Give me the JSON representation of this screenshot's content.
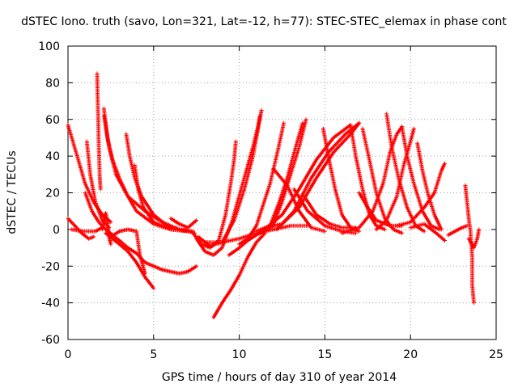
{
  "chart_data": {
    "type": "scatter",
    "title": "dSTEC Iono. truth (savo, Lon=321, Lat=-12, h=77): STEC-STEC_elemax in phase cont",
    "xlabel": "GPS time / hours of day 310 of year 2014",
    "ylabel": "dSTEC  / TECUs",
    "xlim": [
      0,
      25
    ],
    "ylim": [
      -60,
      100
    ],
    "xticks": [
      "0",
      "5",
      "10",
      "15",
      "20",
      "25"
    ],
    "yticks": [
      "-60",
      "-40",
      "-20",
      "0",
      "20",
      "40",
      "60",
      "80",
      "100"
    ],
    "grid": true,
    "marker": "+",
    "series_color": "#ff0000",
    "arcs": [
      [
        [
          0.0,
          57
        ],
        [
          0.6,
          38
        ],
        [
          1.0,
          25
        ],
        [
          1.5,
          15
        ],
        [
          2.0,
          8
        ],
        [
          2.5,
          4
        ]
      ],
      [
        [
          0.0,
          6
        ],
        [
          0.4,
          2
        ],
        [
          0.8,
          -2
        ],
        [
          1.2,
          -5
        ],
        [
          1.5,
          -4
        ]
      ],
      [
        [
          0.2,
          0
        ],
        [
          0.9,
          -1
        ],
        [
          1.6,
          -1
        ],
        [
          2.0,
          1
        ]
      ],
      [
        [
          1.0,
          20
        ],
        [
          1.4,
          10
        ],
        [
          1.8,
          4
        ],
        [
          2.2,
          0
        ],
        [
          2.6,
          -3
        ]
      ],
      [
        [
          1.1,
          48
        ],
        [
          1.3,
          30
        ],
        [
          1.6,
          15
        ],
        [
          2.0,
          5
        ],
        [
          2.4,
          1
        ]
      ],
      [
        [
          1.7,
          85
        ],
        [
          1.75,
          65
        ],
        [
          1.8,
          45
        ],
        [
          1.85,
          30
        ],
        [
          1.9,
          22
        ]
      ],
      [
        [
          2.0,
          0
        ],
        [
          2.1,
          5
        ],
        [
          2.2,
          9
        ],
        [
          2.3,
          4
        ],
        [
          2.4,
          -4
        ],
        [
          2.5,
          -8
        ]
      ],
      [
        [
          2.1,
          66
        ],
        [
          2.3,
          50
        ],
        [
          2.6,
          38
        ],
        [
          3.0,
          28
        ],
        [
          3.5,
          18
        ],
        [
          4.0,
          10
        ],
        [
          5.0,
          3
        ],
        [
          6.0,
          0
        ],
        [
          7.0,
          -1
        ],
        [
          7.4,
          -2
        ]
      ],
      [
        [
          2.1,
          62
        ],
        [
          2.4,
          45
        ],
        [
          2.8,
          30
        ],
        [
          3.5,
          18
        ],
        [
          4.5,
          10
        ],
        [
          5.5,
          4
        ],
        [
          6.5,
          0
        ],
        [
          7.3,
          -1
        ]
      ],
      [
        [
          3.4,
          52
        ],
        [
          3.6,
          40
        ],
        [
          3.9,
          28
        ],
        [
          4.3,
          18
        ],
        [
          5.0,
          8
        ],
        [
          5.8,
          2
        ],
        [
          6.5,
          0
        ],
        [
          7.0,
          -1
        ]
      ],
      [
        [
          3.9,
          35
        ],
        [
          4.1,
          22
        ],
        [
          4.4,
          12
        ],
        [
          5.0,
          4
        ],
        [
          6.0,
          0
        ],
        [
          7.0,
          -1
        ]
      ],
      [
        [
          2.2,
          -2
        ],
        [
          2.6,
          -5
        ],
        [
          3.0,
          -8
        ],
        [
          3.5,
          -12
        ],
        [
          4.0,
          -18
        ],
        [
          4.5,
          -26
        ],
        [
          5.0,
          -32
        ]
      ],
      [
        [
          2.3,
          -1
        ],
        [
          3.0,
          -6
        ],
        [
          3.5,
          -10
        ],
        [
          4.0,
          -13
        ],
        [
          4.5,
          -18
        ],
        [
          5.0,
          -20
        ],
        [
          5.5,
          -22
        ],
        [
          6.0,
          -23
        ],
        [
          6.5,
          -24
        ],
        [
          7.0,
          -23
        ],
        [
          7.5,
          -20
        ]
      ],
      [
        [
          2.5,
          -4
        ],
        [
          3.0,
          -1
        ],
        [
          3.5,
          0
        ],
        [
          4.0,
          -1
        ],
        [
          4.2,
          -14
        ],
        [
          4.5,
          -24
        ]
      ],
      [
        [
          6.0,
          6
        ],
        [
          6.5,
          3
        ],
        [
          7.0,
          1
        ],
        [
          7.5,
          5
        ]
      ],
      [
        [
          7.5,
          -5
        ],
        [
          8.0,
          -12
        ],
        [
          8.5,
          -14
        ],
        [
          9.0,
          -10
        ],
        [
          9.6,
          5
        ],
        [
          10.2,
          25
        ],
        [
          10.8,
          45
        ],
        [
          11.2,
          60
        ],
        [
          11.3,
          65
        ]
      ],
      [
        [
          8.5,
          -48
        ],
        [
          9.0,
          -40
        ],
        [
          9.5,
          -33
        ],
        [
          10.0,
          -25
        ],
        [
          10.5,
          -15
        ],
        [
          11.0,
          -7
        ],
        [
          11.5,
          -2
        ]
      ],
      [
        [
          9.4,
          -14
        ],
        [
          10.0,
          -10
        ],
        [
          10.5,
          -6
        ],
        [
          11.0,
          -3
        ],
        [
          12.0,
          2
        ],
        [
          12.5,
          3
        ]
      ],
      [
        [
          7.3,
          -2
        ],
        [
          7.8,
          -8
        ],
        [
          8.3,
          -10
        ],
        [
          8.8,
          -6
        ],
        [
          9.2,
          8
        ],
        [
          9.5,
          25
        ],
        [
          9.7,
          38
        ],
        [
          9.8,
          48
        ]
      ],
      [
        [
          7.6,
          -4
        ],
        [
          8.3,
          -9
        ],
        [
          9.0,
          -7
        ],
        [
          9.7,
          5
        ],
        [
          10.3,
          22
        ],
        [
          10.8,
          40
        ],
        [
          11.1,
          55
        ],
        [
          11.2,
          62
        ]
      ],
      [
        [
          10.0,
          -8
        ],
        [
          10.5,
          -5
        ],
        [
          11.0,
          2
        ],
        [
          11.8,
          25
        ],
        [
          12.3,
          45
        ],
        [
          12.6,
          58
        ]
      ],
      [
        [
          8.0,
          -7
        ],
        [
          9.0,
          -7
        ],
        [
          10.0,
          -5
        ],
        [
          11.0,
          -2
        ],
        [
          12.0,
          0
        ],
        [
          13.0,
          2
        ],
        [
          14.0,
          2
        ]
      ],
      [
        [
          11.0,
          -1
        ],
        [
          12.0,
          3
        ],
        [
          12.5,
          15
        ],
        [
          13.0,
          30
        ],
        [
          13.5,
          45
        ],
        [
          13.9,
          60
        ]
      ],
      [
        [
          11.2,
          -2
        ],
        [
          11.8,
          2
        ],
        [
          12.3,
          14
        ],
        [
          12.8,
          28
        ],
        [
          13.3,
          45
        ],
        [
          13.7,
          58
        ]
      ],
      [
        [
          12.0,
          33
        ],
        [
          12.8,
          24
        ],
        [
          13.5,
          10
        ],
        [
          14.2,
          1
        ],
        [
          15.0,
          -1
        ]
      ],
      [
        [
          11.5,
          0
        ],
        [
          12.5,
          8
        ],
        [
          13.5,
          22
        ],
        [
          14.5,
          38
        ],
        [
          15.5,
          50
        ],
        [
          16.5,
          57
        ]
      ],
      [
        [
          12.2,
          0
        ],
        [
          13.2,
          10
        ],
        [
          14.2,
          28
        ],
        [
          15.2,
          42
        ],
        [
          16.2,
          52
        ],
        [
          17.0,
          58
        ]
      ],
      [
        [
          12.5,
          3
        ],
        [
          13.5,
          12
        ],
        [
          14.5,
          28
        ],
        [
          15.5,
          42
        ],
        [
          16.5,
          52
        ],
        [
          17.0,
          58
        ]
      ],
      [
        [
          14.9,
          55
        ],
        [
          15.2,
          40
        ],
        [
          15.6,
          22
        ],
        [
          16.0,
          8
        ],
        [
          16.5,
          1
        ],
        [
          17.0,
          -1
        ]
      ],
      [
        [
          13.8,
          18
        ],
        [
          14.5,
          8
        ],
        [
          15.3,
          3
        ],
        [
          16.0,
          1
        ],
        [
          16.8,
          1
        ]
      ],
      [
        [
          13.2,
          22
        ],
        [
          14.0,
          10
        ],
        [
          15.0,
          2
        ],
        [
          16.0,
          -1
        ],
        [
          16.8,
          -2
        ]
      ],
      [
        [
          16.5,
          57
        ],
        [
          16.8,
          40
        ],
        [
          17.2,
          22
        ],
        [
          17.6,
          8
        ],
        [
          18.0,
          2
        ],
        [
          18.5,
          0
        ]
      ],
      [
        [
          17.0,
          20
        ],
        [
          17.5,
          12
        ],
        [
          18.0,
          5
        ],
        [
          18.8,
          2
        ],
        [
          19.5,
          2
        ]
      ],
      [
        [
          16.0,
          -2
        ],
        [
          17.0,
          1
        ],
        [
          17.8,
          10
        ],
        [
          18.4,
          25
        ],
        [
          18.8,
          42
        ],
        [
          19.2,
          52
        ],
        [
          19.5,
          56
        ]
      ],
      [
        [
          17.2,
          55
        ],
        [
          17.6,
          38
        ],
        [
          18.0,
          20
        ],
        [
          18.5,
          6
        ],
        [
          19.0,
          0
        ],
        [
          19.5,
          -2
        ]
      ],
      [
        [
          18.6,
          63
        ],
        [
          18.9,
          45
        ],
        [
          19.3,
          28
        ],
        [
          19.8,
          12
        ],
        [
          20.3,
          2
        ],
        [
          20.8,
          -1
        ]
      ],
      [
        [
          18.0,
          0
        ],
        [
          18.6,
          5
        ],
        [
          19.2,
          18
        ],
        [
          19.6,
          35
        ],
        [
          20.0,
          48
        ],
        [
          20.2,
          55
        ]
      ],
      [
        [
          19.5,
          56
        ],
        [
          19.8,
          40
        ],
        [
          20.2,
          25
        ],
        [
          20.7,
          10
        ],
        [
          21.2,
          2
        ],
        [
          21.7,
          0
        ]
      ],
      [
        [
          20.4,
          47
        ],
        [
          20.7,
          32
        ],
        [
          21.0,
          20
        ],
        [
          21.4,
          8
        ],
        [
          21.8,
          0
        ]
      ],
      [
        [
          19.2,
          2
        ],
        [
          20.0,
          4
        ],
        [
          20.8,
          12
        ],
        [
          21.4,
          20
        ],
        [
          21.8,
          32
        ],
        [
          22.0,
          36
        ]
      ],
      [
        [
          20.0,
          1
        ],
        [
          20.8,
          3
        ],
        [
          21.5,
          -2
        ],
        [
          22.0,
          -6
        ]
      ],
      [
        [
          22.2,
          -3
        ],
        [
          22.6,
          -1
        ],
        [
          23.0,
          1
        ],
        [
          23.3,
          2
        ]
      ],
      [
        [
          23.2,
          24
        ],
        [
          23.3,
          15
        ],
        [
          23.4,
          6
        ],
        [
          23.5,
          -1
        ],
        [
          23.6,
          -15
        ],
        [
          23.6,
          -30
        ],
        [
          23.7,
          -40
        ]
      ],
      [
        [
          23.4,
          -5
        ],
        [
          23.7,
          -10
        ],
        [
          23.9,
          -5
        ],
        [
          24.0,
          0
        ]
      ]
    ]
  }
}
